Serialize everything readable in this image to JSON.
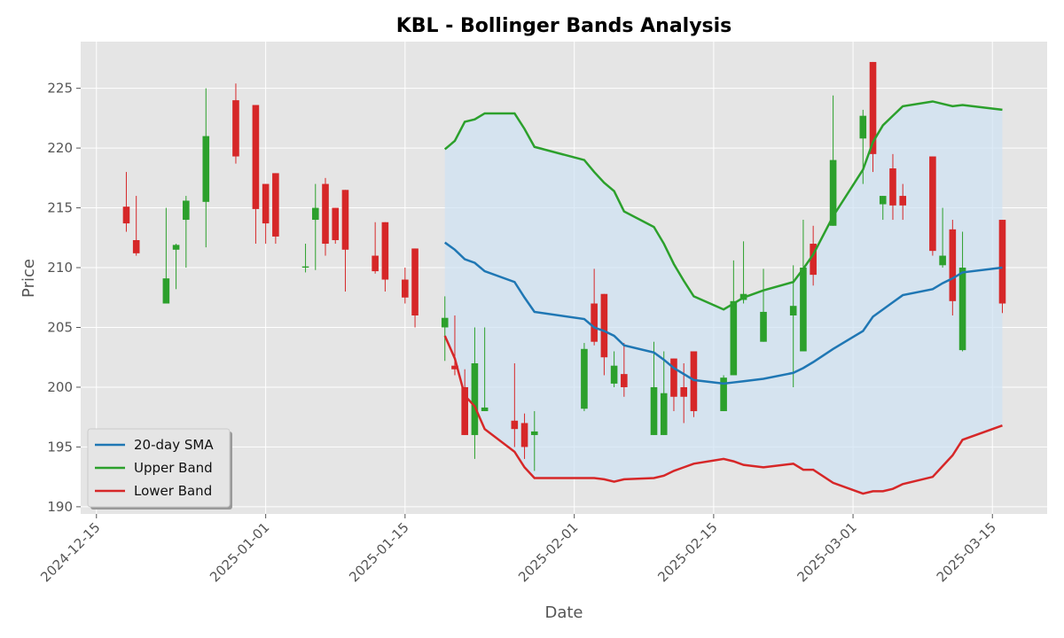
{
  "chart_data": {
    "type": "candlestick",
    "title": "KBL - Bollinger Bands Analysis",
    "xlabel": "Date",
    "ylabel": "Price",
    "x": [
      "2024-12-18",
      "2024-12-19",
      "2024-12-22",
      "2024-12-23",
      "2024-12-24",
      "2024-12-26",
      "2024-12-29",
      "2024-12-31",
      "2025-01-01",
      "2025-01-02",
      "2025-01-05",
      "2025-01-06",
      "2025-01-07",
      "2025-01-08",
      "2025-01-09",
      "2025-01-12",
      "2025-01-13",
      "2025-01-15",
      "2025-01-16",
      "2025-01-19",
      "2025-01-20",
      "2025-01-21",
      "2025-01-22",
      "2025-01-23",
      "2025-01-26",
      "2025-01-27",
      "2025-01-28",
      "2025-02-02",
      "2025-02-03",
      "2025-02-04",
      "2025-02-05",
      "2025-02-06",
      "2025-02-09",
      "2025-02-10",
      "2025-02-11",
      "2025-02-12",
      "2025-02-13",
      "2025-02-16",
      "2025-02-17",
      "2025-02-18",
      "2025-02-20",
      "2025-02-23",
      "2025-02-24",
      "2025-02-25",
      "2025-02-27",
      "2025-03-02",
      "2025-03-03",
      "2025-03-04",
      "2025-03-05",
      "2025-03-06",
      "2025-03-09",
      "2025-03-10",
      "2025-03-11",
      "2025-03-12",
      "2025-03-16"
    ],
    "open": [
      215.1,
      212.3,
      207,
      211.5,
      214,
      215.5,
      224,
      223.6,
      217,
      217.9,
      210,
      214,
      217,
      215,
      216.5,
      211,
      213.8,
      209,
      211.6,
      205,
      201.8,
      200,
      196,
      198,
      197.2,
      197,
      196,
      198.2,
      207,
      207.8,
      200.3,
      201.1,
      196,
      196,
      202.4,
      200,
      203,
      198,
      201,
      207.3,
      203.8,
      206,
      203,
      212,
      213.5,
      220.8,
      227.2,
      215.3,
      218.3,
      216,
      219.3,
      210.2,
      213.2,
      203.1,
      214
    ],
    "high": [
      218,
      216,
      215,
      212,
      216,
      225,
      225.4,
      223.6,
      217,
      217.9,
      212,
      217,
      217.5,
      215,
      216.5,
      213.8,
      213.8,
      210,
      211.6,
      207.6,
      206,
      201.5,
      205,
      205,
      202,
      197.8,
      198,
      203.7,
      209.9,
      207.8,
      203,
      203.7,
      203.8,
      203,
      202.4,
      202,
      203,
      201,
      210.6,
      212.2,
      209.9,
      210.2,
      214,
      213.5,
      224.4,
      223.2,
      227.2,
      216,
      219.5,
      217,
      219.3,
      215,
      214,
      213,
      214
    ],
    "low": [
      213,
      211,
      207,
      208.2,
      210,
      211.7,
      218.7,
      212,
      212,
      212,
      209.6,
      209.8,
      211,
      212,
      208,
      209.5,
      208,
      207,
      205,
      202.2,
      201,
      196,
      194,
      198,
      195,
      194,
      193,
      198,
      203.5,
      201,
      200,
      199.2,
      196,
      196,
      198,
      197,
      197.5,
      198,
      201,
      207,
      203.8,
      200,
      203,
      208.5,
      213.5,
      217,
      218,
      214,
      214,
      214,
      211,
      210,
      206,
      203,
      206.2
    ],
    "close": [
      213.7,
      211.2,
      209.1,
      211.9,
      215.6,
      221,
      219.3,
      214.9,
      213.7,
      212.6,
      210.1,
      215,
      212,
      212.3,
      211.5,
      209.7,
      209,
      207.5,
      206,
      205.8,
      201.5,
      196,
      202,
      198.3,
      196.5,
      195,
      196.3,
      203.2,
      203.8,
      202.5,
      201.8,
      200,
      200,
      199.5,
      199.2,
      199.2,
      198,
      200.8,
      207.2,
      207.8,
      206.3,
      206.8,
      210,
      209.4,
      219,
      222.7,
      219.5,
      216,
      215.2,
      215.2,
      211.4,
      211,
      207.2,
      210,
      207
    ],
    "up_color": "#2ca02c",
    "down_color": "#d62728",
    "band_fill": "#cfe2f3",
    "series": [
      {
        "name": "20-day SMA",
        "color": "#1f77b4",
        "values": [
          null,
          null,
          null,
          null,
          null,
          null,
          null,
          null,
          null,
          null,
          null,
          null,
          null,
          null,
          null,
          null,
          null,
          null,
          null,
          212.1,
          211.5,
          210.7,
          210.4,
          209.7,
          208.8,
          207.5,
          206.3,
          205.7,
          205.0,
          204.7,
          204.3,
          203.5,
          202.9,
          202.3,
          201.6,
          201.1,
          200.6,
          200.3,
          200.4,
          200.5,
          200.7,
          201.2,
          201.6,
          202.1,
          203.2,
          204.7,
          205.9,
          206.5,
          207.1,
          207.7,
          208.2,
          208.7,
          209.1,
          209.6,
          210.0
        ]
      },
      {
        "name": "Upper Band",
        "color": "#2ca02c",
        "values": [
          null,
          null,
          null,
          null,
          null,
          null,
          null,
          null,
          null,
          null,
          null,
          null,
          null,
          null,
          null,
          null,
          null,
          null,
          null,
          219.9,
          220.6,
          222.2,
          222.4,
          222.9,
          222.9,
          221.6,
          220.1,
          219.0,
          218.0,
          217.1,
          216.4,
          214.7,
          213.4,
          212.0,
          210.3,
          208.9,
          207.6,
          206.5,
          207.0,
          207.5,
          208.1,
          208.8,
          209.9,
          211.1,
          214.3,
          218.2,
          220.5,
          221.9,
          222.7,
          223.5,
          223.9,
          223.7,
          223.5,
          223.6,
          223.2
        ]
      },
      {
        "name": "Lower Band",
        "color": "#d62728",
        "values": [
          null,
          null,
          null,
          null,
          null,
          null,
          null,
          null,
          null,
          null,
          null,
          null,
          null,
          null,
          null,
          null,
          null,
          null,
          null,
          204.3,
          202.4,
          199.3,
          198.4,
          196.5,
          194.6,
          193.3,
          192.4,
          192.4,
          192.4,
          192.3,
          192.1,
          192.3,
          192.4,
          192.6,
          193.0,
          193.3,
          193.6,
          194.0,
          193.8,
          193.5,
          193.3,
          193.6,
          193.1,
          193.1,
          192.0,
          191.1,
          191.3,
          191.3,
          191.5,
          191.9,
          192.5,
          193.4,
          194.3,
          195.6,
          196.8
        ]
      }
    ],
    "xlim": [
      "2024-12-13T10:00Z",
      "2025-03-20T12:00Z"
    ],
    "xticks": [
      "2024-12-15",
      "2025-01-01",
      "2025-01-15",
      "2025-02-01",
      "2025-02-15",
      "2025-03-01",
      "2025-03-15"
    ],
    "ylim": [
      189.4,
      228.9
    ],
    "yticks": [
      190,
      195,
      200,
      205,
      210,
      215,
      220,
      225
    ],
    "grid": true,
    "legend": "lower left"
  }
}
